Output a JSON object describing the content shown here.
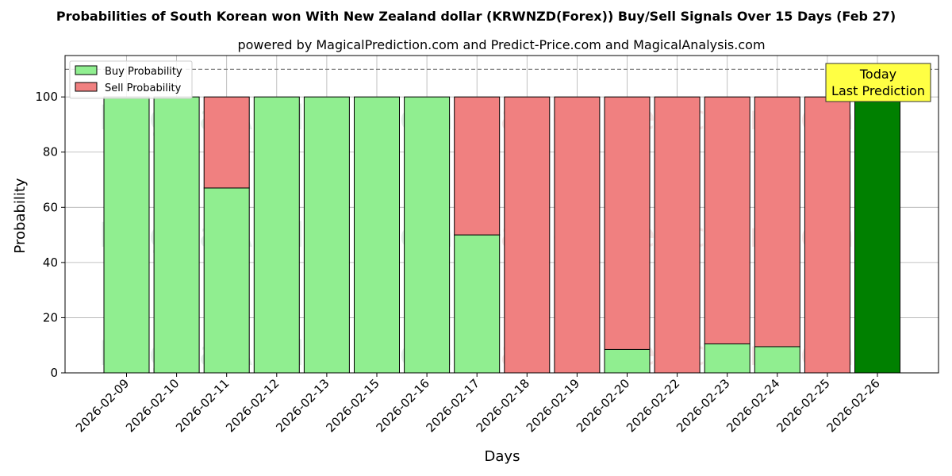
{
  "chart_data": {
    "type": "bar",
    "stacked": true,
    "title": "Probabilities of South Korean won With New Zealand dollar (KRWNZD(Forex)) Buy/Sell Signals Over 15 Days (Feb 27)",
    "subtitle": "powered by MagicalPrediction.com and Predict-Price.com and MagicalAnalysis.com",
    "xlabel": "Days",
    "ylabel": "Probability",
    "ylim": [
      0,
      115
    ],
    "yticks": [
      0,
      20,
      40,
      60,
      80,
      100
    ],
    "reference_line": 110,
    "grid": true,
    "legend_position": "top-left",
    "categories": [
      "2026-02-09",
      "2026-02-10",
      "2026-02-11",
      "2026-02-12",
      "2026-02-13",
      "2026-02-15",
      "2026-02-16",
      "2026-02-17",
      "2026-02-18",
      "2026-02-19",
      "2026-02-20",
      "2026-02-22",
      "2026-02-23",
      "2026-02-24",
      "2026-02-25",
      "2026-02-26"
    ],
    "series": [
      {
        "name": "Buy Probability",
        "color": "#90ee90",
        "values": [
          100,
          100,
          67,
          100,
          100,
          100,
          100,
          50,
          0,
          0,
          8.5,
          0,
          10.5,
          9.5,
          0,
          100
        ]
      },
      {
        "name": "Sell Probability",
        "color": "#f08080",
        "values": [
          0,
          0,
          33,
          0,
          0,
          0,
          0,
          50,
          100,
          100,
          91.5,
          100,
          89.5,
          90.5,
          100,
          0
        ]
      }
    ],
    "highlight": {
      "index": 15,
      "color": "#008000"
    },
    "annotation": {
      "line1": "Today",
      "line2": "Last Prediction",
      "background": "#ffff44"
    },
    "watermarks": [
      "MagicalAnalysis.com",
      "MagicalPrediction.com"
    ]
  }
}
